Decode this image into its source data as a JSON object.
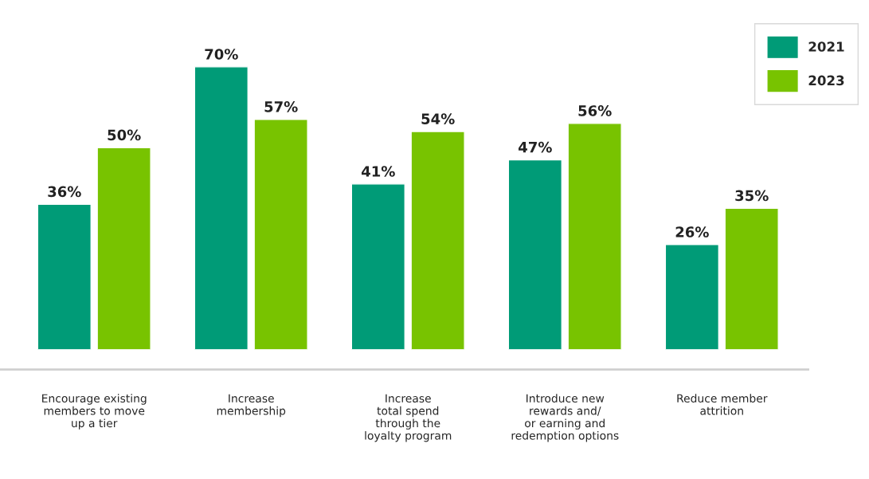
{
  "chart_data": {
    "type": "bar",
    "categories": [
      "Encourage existing\nmembers to move\nup a tier",
      "Increase\nmembership",
      "Increase\ntotal spend\nthrough the\nloyalty program",
      "Introduce new\nrewards and/\nor earning and\nredemption options",
      "Reduce member\nattrition"
    ],
    "series": [
      {
        "name": "2021",
        "color": "#009b77",
        "values": [
          36,
          70,
          41,
          47,
          26
        ],
        "value_labels": [
          "36%",
          "70%",
          "41%",
          "47%",
          "26%"
        ]
      },
      {
        "name": "2023",
        "color": "#78c300",
        "values": [
          50,
          57,
          54,
          56,
          35
        ],
        "value_labels": [
          "50%",
          "57%",
          "54%",
          "56%",
          "35%"
        ]
      }
    ],
    "legend": "top right",
    "grid": false
  }
}
